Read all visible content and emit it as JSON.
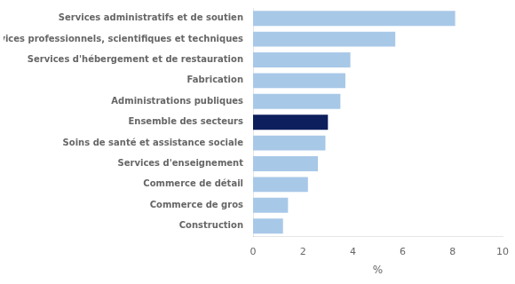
{
  "chart_data": {
    "type": "bar",
    "orientation": "horizontal",
    "categories": [
      "Construction",
      "Commerce de gros",
      "Commerce de détail",
      "Services d'enseignement",
      "Soins de santé et assistance sociale",
      "Ensemble des secteurs",
      "Administrations publiques",
      "Fabrication",
      "Services d'hébergement et de restauration",
      "Services professionnels, scientifiques et techniques",
      "Services administratifs et de soutien"
    ],
    "values": [
      1.2,
      1.4,
      2.2,
      2.6,
      2.9,
      3.0,
      3.5,
      3.7,
      3.9,
      5.7,
      8.1
    ],
    "colors": [
      "#a8c8e8",
      "#a8c8e8",
      "#a8c8e8",
      "#a8c8e8",
      "#a8c8e8",
      "#0d1f5c",
      "#a8c8e8",
      "#a8c8e8",
      "#a8c8e8",
      "#a8c8e8",
      "#a8c8e8"
    ],
    "xlabel": "%",
    "xlim": [
      0,
      10
    ],
    "xticks": [
      0,
      2,
      4,
      6,
      8,
      10
    ],
    "grid": false
  }
}
